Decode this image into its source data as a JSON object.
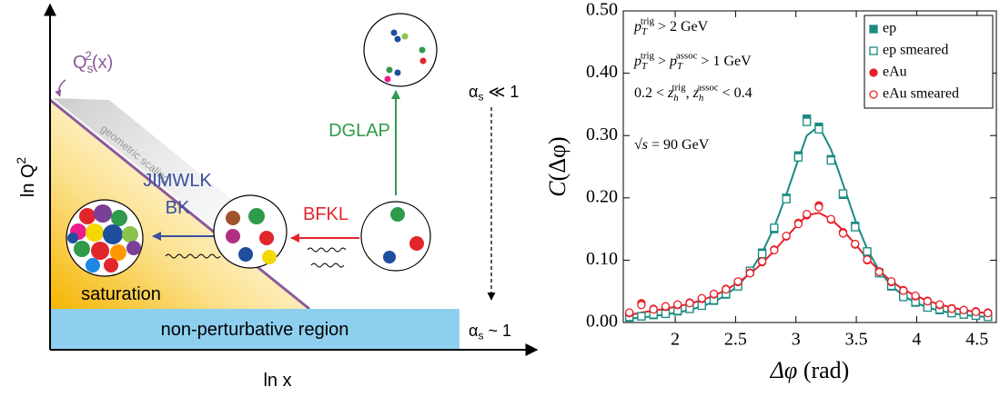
{
  "diagram": {
    "y_axis_label": [
      {
        "t": "ln Q"
      },
      {
        "t": "2",
        "pos": "sup"
      }
    ],
    "x_axis_label": [
      {
        "t": "ln x"
      }
    ],
    "saturation_scale": [
      {
        "t": "Q"
      },
      {
        "t": "s",
        "pos": "sub"
      },
      {
        "t": "2",
        "pos": "sup"
      },
      {
        "t": "(x)"
      }
    ],
    "line_label": [
      {
        "t": "geometric scaling"
      }
    ],
    "evolution_left": [
      [
        {
          "t": "JIMWLK"
        }
      ],
      [
        {
          "t": "BK"
        }
      ]
    ],
    "evolution_right": [
      {
        "t": "BFKL"
      }
    ],
    "evolution_up": [
      {
        "t": "DGLAP"
      }
    ],
    "region_saturation": [
      {
        "t": "saturation"
      }
    ],
    "region_nonperturbative": [
      {
        "t": "non-perturbative region"
      }
    ],
    "coupling_weak": [
      {
        "t": "α"
      },
      {
        "t": "s",
        "pos": "sub"
      },
      {
        "t": " ≪ 1"
      }
    ],
    "coupling_strong": [
      {
        "t": "α"
      },
      {
        "t": "s",
        "pos": "sub"
      },
      {
        "t": " ~ 1"
      }
    ]
  },
  "chart_data": {
    "type": "scatter",
    "x_label": [
      {
        "t": "Δφ",
        "it": true
      },
      {
        "t": " (rad)"
      }
    ],
    "y_label": [
      {
        "t": "C",
        "it": true
      },
      {
        "t": "(Δφ)"
      }
    ],
    "annotations": [
      [
        {
          "t": "p",
          "it": true
        },
        {
          "t": "T",
          "pos": "sub",
          "it": true
        },
        {
          "t": "trig",
          "pos": "sup"
        },
        {
          "t": " > 2 GeV"
        }
      ],
      [
        {
          "t": "p",
          "it": true
        },
        {
          "t": "T",
          "pos": "sub",
          "it": true
        },
        {
          "t": "trig",
          "pos": "sup"
        },
        {
          "t": " > "
        },
        {
          "t": "p",
          "it": true
        },
        {
          "t": "T",
          "pos": "sub",
          "it": true
        },
        {
          "t": "assoc",
          "pos": "sup"
        },
        {
          "t": " > 1 GeV"
        }
      ],
      [
        {
          "t": "0.2 < "
        },
        {
          "t": "z",
          "it": true
        },
        {
          "t": "h",
          "pos": "sub",
          "it": true
        },
        {
          "t": "trig",
          "pos": "sup"
        },
        {
          "t": ", "
        },
        {
          "t": "z",
          "it": true
        },
        {
          "t": "h",
          "pos": "sub",
          "it": true
        },
        {
          "t": "assoc",
          "pos": "sup"
        },
        {
          "t": " < 0.4"
        }
      ],
      [
        {
          "t": "√"
        },
        {
          "t": "s",
          "it": true
        },
        {
          "t": " = 90 GeV"
        }
      ]
    ],
    "x": [
      1.62,
      1.72,
      1.82,
      1.92,
      2.02,
      2.12,
      2.22,
      2.32,
      2.42,
      2.52,
      2.62,
      2.72,
      2.82,
      2.92,
      3.02,
      3.09,
      3.19,
      3.29,
      3.39,
      3.49,
      3.59,
      3.69,
      3.79,
      3.89,
      3.99,
      4.09,
      4.19,
      4.29,
      4.39,
      4.49,
      4.59
    ],
    "series": [
      {
        "name": "ep",
        "color": "#1a8a82",
        "marker": "square",
        "filled": true,
        "values": [
          0.008,
          0.01,
          0.012,
          0.015,
          0.018,
          0.022,
          0.028,
          0.035,
          0.045,
          0.06,
          0.082,
          0.112,
          0.15,
          0.2,
          0.268,
          0.327,
          0.314,
          0.262,
          0.205,
          0.155,
          0.112,
          0.08,
          0.058,
          0.042,
          0.032,
          0.025,
          0.02,
          0.016,
          0.013,
          0.011,
          0.01
        ]
      },
      {
        "name": "ep smeared",
        "color": "#1a8a82",
        "marker": "square",
        "filled": false,
        "values": [
          0.009,
          0.01,
          0.013,
          0.014,
          0.019,
          0.022,
          0.027,
          0.036,
          0.046,
          0.058,
          0.083,
          0.11,
          0.152,
          0.198,
          0.265,
          0.322,
          0.31,
          0.26,
          0.207,
          0.153,
          0.114,
          0.079,
          0.059,
          0.041,
          0.033,
          0.024,
          0.021,
          0.015,
          0.013,
          0.011,
          0.009
        ]
      },
      {
        "name": "eAu",
        "color": "#e8202a",
        "marker": "circle",
        "filled": true,
        "values": [
          0.015,
          0.031,
          0.022,
          0.025,
          0.028,
          0.032,
          0.038,
          0.045,
          0.054,
          0.065,
          0.08,
          0.097,
          0.117,
          0.138,
          0.16,
          0.172,
          0.188,
          0.165,
          0.145,
          0.125,
          0.1,
          0.082,
          0.065,
          0.052,
          0.042,
          0.035,
          0.028,
          0.023,
          0.02,
          0.018,
          0.016
        ]
      },
      {
        "name": "eAu smeared",
        "color": "#e8202a",
        "marker": "circle",
        "filled": false,
        "values": [
          0.016,
          0.028,
          0.021,
          0.026,
          0.029,
          0.031,
          0.039,
          0.046,
          0.053,
          0.066,
          0.079,
          0.098,
          0.116,
          0.139,
          0.158,
          0.174,
          0.185,
          0.166,
          0.143,
          0.126,
          0.101,
          0.081,
          0.066,
          0.051,
          0.043,
          0.034,
          0.029,
          0.022,
          0.02,
          0.017,
          0.015
        ]
      }
    ],
    "fits": [
      {
        "color": "#1a8a82",
        "values": [
          0.006,
          0.008,
          0.01,
          0.013,
          0.016,
          0.02,
          0.026,
          0.033,
          0.044,
          0.059,
          0.081,
          0.112,
          0.153,
          0.205,
          0.262,
          0.3,
          0.315,
          0.278,
          0.222,
          0.165,
          0.118,
          0.083,
          0.059,
          0.043,
          0.032,
          0.024,
          0.019,
          0.015,
          0.012,
          0.01,
          0.009
        ]
      },
      {
        "color": "#e8202a",
        "values": [
          0.012,
          0.016,
          0.019,
          0.022,
          0.026,
          0.03,
          0.036,
          0.043,
          0.052,
          0.064,
          0.078,
          0.095,
          0.115,
          0.137,
          0.158,
          0.172,
          0.176,
          0.166,
          0.148,
          0.126,
          0.103,
          0.083,
          0.066,
          0.053,
          0.043,
          0.035,
          0.029,
          0.024,
          0.02,
          0.017,
          0.015
        ]
      }
    ],
    "xlim": [
      1.57,
      4.66
    ],
    "ylim": [
      0,
      0.5
    ],
    "xticks": [
      2,
      2.5,
      3,
      3.5,
      4,
      4.5
    ],
    "yticks": [
      {
        "value": 0,
        "label": "0.00"
      },
      {
        "value": 0.1,
        "label": "0.10"
      },
      {
        "value": 0.2,
        "label": "0.20"
      },
      {
        "value": 0.3,
        "label": "0.30"
      },
      {
        "value": 0.4,
        "label": "0.40"
      },
      {
        "value": 0.5,
        "label": "0.50"
      }
    ],
    "legend": "top-right"
  }
}
